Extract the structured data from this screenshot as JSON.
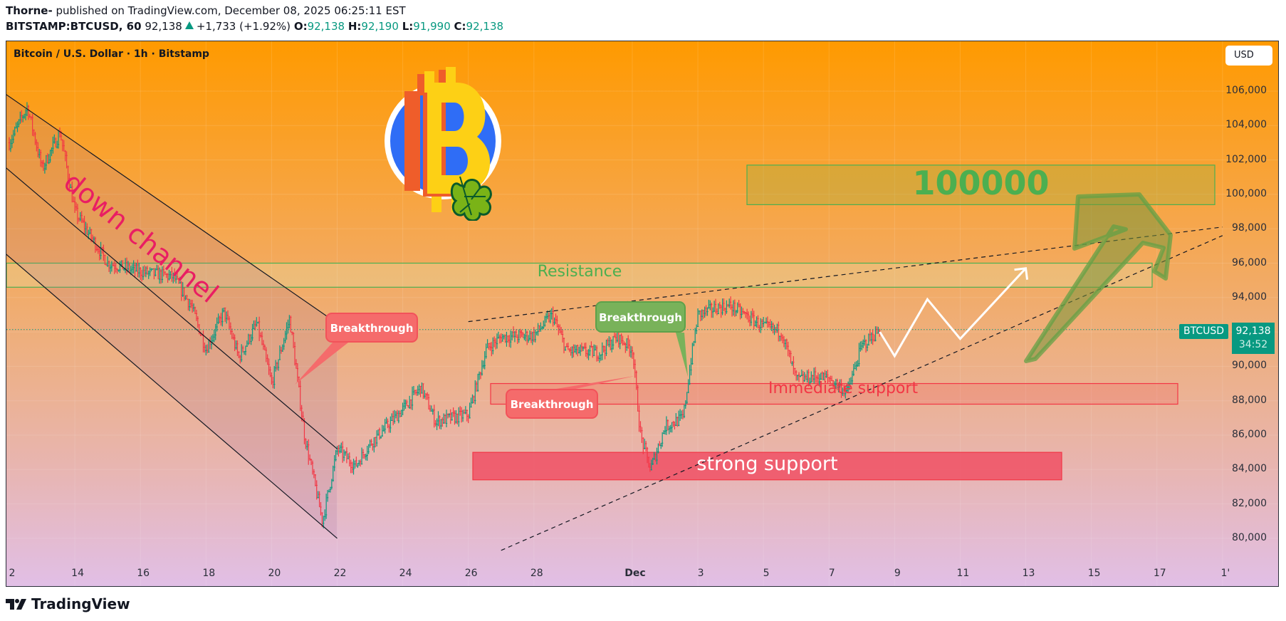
{
  "header": {
    "author": "Thorne-",
    "published_text": " published on TradingView.com, December 08, 2025 06:25:11 EST",
    "symbol_interval": "BITSTAMP:BTCUSD, 60",
    "last_price": "92,138",
    "change": "+1,733 (+1.92%)",
    "ohlc": {
      "o_label": "O:",
      "o": "92,138",
      "h_label": "H:",
      "h": "92,190",
      "l_label": "L:",
      "l": "91,990",
      "c_label": "C:",
      "c": "92,138"
    }
  },
  "chart": {
    "legend": "Bitcoin / U.S. Dollar · 1h · Bitstamp",
    "currency_button": "USD",
    "symbol_tag": "BTCUSD",
    "price_tag": "92,138",
    "countdown": "34:52",
    "colors": {
      "up": "#089981",
      "down": "#f23645",
      "resistance": "#4caf50",
      "support": "#f23645",
      "bg_top": "#ff9a00",
      "bg_bottom": "#e1bfe6"
    }
  },
  "annotations": {
    "down_channel": "down channel",
    "breakthrough_1": "Breakthrough",
    "breakthrough_2": "Breakthrough",
    "breakthrough_3": "Breakthrough",
    "resistance": "Resistance",
    "target": "100000",
    "immediate_support": "Immediate support",
    "strong_support": "strong support"
  },
  "footer": {
    "brand": "TradingView"
  },
  "chart_data": {
    "type": "candlestick",
    "title": "Bitcoin / U.S. Dollar · 1h · Bitstamp",
    "symbol": "BITSTAMP:BTCUSD",
    "interval": "1h",
    "xlabel": "",
    "ylabel": "USD",
    "y_ticks": [
      106000,
      104000,
      102000,
      100000,
      98000,
      96000,
      94000,
      92000,
      90000,
      88000,
      86000,
      84000,
      82000,
      80000
    ],
    "y_tick_labels": [
      "106,000",
      "104,000",
      "102,000",
      "100,000",
      "98,000",
      "96,000",
      "94,000",
      "92,000",
      "90,000",
      "88,000",
      "86,000",
      "84,000",
      "82,000",
      "80,000"
    ],
    "x_tick_labels": [
      "2",
      "14",
      "16",
      "18",
      "20",
      "22",
      "24",
      "26",
      "28",
      "Dec",
      "3",
      "5",
      "7",
      "9",
      "11",
      "13",
      "15",
      "17",
      "1'"
    ],
    "ylim": [
      79000,
      107500
    ],
    "grid": true,
    "last_price": 92138,
    "price_path_anchors": [
      {
        "date": "Nov 12",
        "price": 103000
      },
      {
        "date": "Nov 12 PM",
        "price": 105100
      },
      {
        "date": "Nov 13",
        "price": 101500
      },
      {
        "date": "Nov 13 PM",
        "price": 103600
      },
      {
        "date": "Nov 14",
        "price": 99000
      },
      {
        "date": "Nov 15",
        "price": 96000
      },
      {
        "date": "Nov 16",
        "price": 95500
      },
      {
        "date": "Nov 17",
        "price": 95200
      },
      {
        "date": "Nov 17 PM",
        "price": 93500
      },
      {
        "date": "Nov 18",
        "price": 91000
      },
      {
        "date": "Nov 18 PM",
        "price": 93200
      },
      {
        "date": "Nov 19",
        "price": 90500
      },
      {
        "date": "Nov 19 PM",
        "price": 92500
      },
      {
        "date": "Nov 20",
        "price": 89000
      },
      {
        "date": "Nov 20 PM",
        "price": 92800
      },
      {
        "date": "Nov 21",
        "price": 86000
      },
      {
        "date": "Nov 21 PM",
        "price": 81000
      },
      {
        "date": "Nov 22",
        "price": 85200
      },
      {
        "date": "Nov 22 PM",
        "price": 84200
      },
      {
        "date": "Nov 23",
        "price": 85500
      },
      {
        "date": "Nov 24",
        "price": 87500
      },
      {
        "date": "Nov 24 PM",
        "price": 88800
      },
      {
        "date": "Nov 25",
        "price": 86800
      },
      {
        "date": "Nov 26",
        "price": 87200
      },
      {
        "date": "Nov 26 PM",
        "price": 91000
      },
      {
        "date": "Nov 27",
        "price": 91700
      },
      {
        "date": "Nov 28",
        "price": 91800
      },
      {
        "date": "Nov 28 PM",
        "price": 93000
      },
      {
        "date": "Nov 29",
        "price": 90900
      },
      {
        "date": "Nov 30",
        "price": 90800
      },
      {
        "date": "Nov 30 PM",
        "price": 91700
      },
      {
        "date": "Dec 1",
        "price": 91000
      },
      {
        "date": "Dec 1 AM",
        "price": 86000
      },
      {
        "date": "Dec 1 PM",
        "price": 84000
      },
      {
        "date": "Dec 2",
        "price": 86500
      },
      {
        "date": "Dec 2 PM",
        "price": 87000
      },
      {
        "date": "Dec 2 late",
        "price": 90500
      },
      {
        "date": "Dec 3",
        "price": 93000
      },
      {
        "date": "Dec 3 PM",
        "price": 93400
      },
      {
        "date": "Dec 4",
        "price": 93500
      },
      {
        "date": "Dec 5",
        "price": 92300
      },
      {
        "date": "Dec 5 PM",
        "price": 92000
      },
      {
        "date": "Dec 6",
        "price": 89200
      },
      {
        "date": "Dec 6 PM",
        "price": 89400
      },
      {
        "date": "Dec 7",
        "price": 89300
      },
      {
        "date": "Dec 7 PM",
        "price": 88500
      },
      {
        "date": "Dec 8",
        "price": 91200
      },
      {
        "date": "Dec 8 PM",
        "price": 92138
      }
    ],
    "zones": [
      {
        "label": "100000",
        "type": "target",
        "y_top": 101700,
        "y_bottom": 99400
      },
      {
        "label": "Resistance",
        "type": "resistance",
        "y_top": 96000,
        "y_bottom": 94600
      },
      {
        "label": "Immediate support",
        "type": "support",
        "y_top": 89000,
        "y_bottom": 87800
      },
      {
        "label": "strong support",
        "type": "support",
        "y_top": 85000,
        "y_bottom": 83400
      }
    ],
    "lines": [
      {
        "label": "down channel upper",
        "from": [
          "Nov 11",
          107000
        ],
        "to": [
          "Nov 22",
          92500
        ]
      },
      {
        "label": "down channel mid",
        "from": [
          "Nov 11",
          103000
        ],
        "to": [
          "Nov 22",
          85200
        ]
      },
      {
        "label": "down channel lower",
        "from": [
          "Nov 11",
          98000
        ],
        "to": [
          "Nov 22",
          80000
        ]
      },
      {
        "label": "upper dashed trendline",
        "from": [
          "Nov 26",
          92600
        ],
        "to": [
          "Dec 19",
          98100
        ]
      },
      {
        "label": "lower dashed trendline",
        "from": [
          "Nov 27",
          79300
        ],
        "to": [
          "Dec 19",
          97600
        ]
      }
    ],
    "projection_path": [
      {
        "date": "Dec 8 PM",
        "price": 92000
      },
      {
        "date": "Dec 9",
        "price": 90600
      },
      {
        "date": "Dec 10",
        "price": 93900
      },
      {
        "date": "Dec 11",
        "price": 91600
      },
      {
        "date": "Dec 13",
        "price": 95700
      }
    ]
  }
}
